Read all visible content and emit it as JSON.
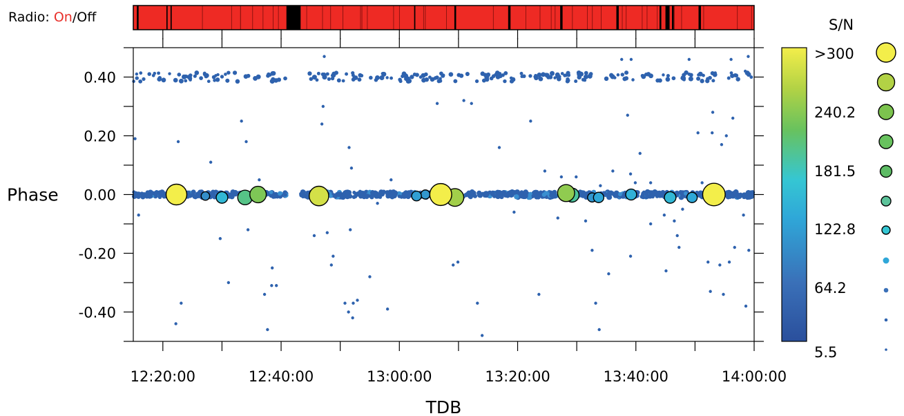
{
  "radio": {
    "label": "Radio:",
    "on": "On",
    "sep": "/",
    "off": "Off"
  },
  "colors": {
    "on": "#ee2a24",
    "off": "#000000",
    "colorbar_stops": [
      "#2a4f9c",
      "#3a70b8",
      "#2fa7d8",
      "#35c6d3",
      "#68c25e",
      "#b2d245",
      "#f3ee4a"
    ]
  },
  "chart_data": {
    "type": "scatter",
    "xlabel": "TDB",
    "ylabel": "Phase",
    "x_start": "12:15:00",
    "x_end": "14:00:00",
    "xlim_minutes": [
      0,
      105
    ],
    "ylim": [
      -0.5,
      0.5
    ],
    "x_ticks": [
      "12:20:00",
      "12:40:00",
      "13:00:00",
      "13:20:00",
      "13:40:00",
      "14:00:00"
    ],
    "y_ticks": [
      "0.40",
      "0.20",
      "0.00",
      "-0.20",
      "-0.40"
    ],
    "grid": false,
    "colorbar": {
      "title": "S/N",
      "tick_labels": [
        ">300",
        "240.2",
        "181.5",
        "122.8",
        "64.2",
        "5.5"
      ],
      "range": [
        5.5,
        300
      ]
    },
    "radio_off_intervals_minutes": [
      [
        25.9,
        28.3
      ],
      [
        0.6,
        0.9
      ],
      [
        5.6,
        5.8
      ],
      [
        6.3,
        6.5
      ],
      [
        47.5,
        47.7
      ],
      [
        54.3,
        54.6
      ],
      [
        63.4,
        63.8
      ],
      [
        72.2,
        72.6
      ],
      [
        81.7,
        82.1
      ],
      [
        89.0,
        89.3
      ],
      [
        90.0,
        90.7
      ],
      [
        91.1,
        91.4
      ],
      [
        95.6,
        96.0
      ]
    ],
    "large_points": [
      {
        "t": 7.3,
        "phase": 0.0,
        "sn": 300
      },
      {
        "t": 12.2,
        "phase": -0.005,
        "sn": 100
      },
      {
        "t": 15.0,
        "phase": -0.01,
        "sn": 150
      },
      {
        "t": 18.9,
        "phase": -0.01,
        "sn": 200
      },
      {
        "t": 21.1,
        "phase": 0.0,
        "sn": 230
      },
      {
        "t": 31.4,
        "phase": -0.005,
        "sn": 280
      },
      {
        "t": 52.0,
        "phase": 0.0,
        "sn": 320
      },
      {
        "t": 54.4,
        "phase": -0.01,
        "sn": 250
      },
      {
        "t": 47.9,
        "phase": -0.005,
        "sn": 120
      },
      {
        "t": 49.4,
        "phase": 0.0,
        "sn": 110
      },
      {
        "t": 73.2,
        "phase": 0.005,
        "sn": 240
      },
      {
        "t": 74.2,
        "phase": -0.002,
        "sn": 190
      },
      {
        "t": 77.6,
        "phase": -0.01,
        "sn": 110
      },
      {
        "t": 78.7,
        "phase": -0.01,
        "sn": 130
      },
      {
        "t": 84.2,
        "phase": 0.0,
        "sn": 140
      },
      {
        "t": 90.8,
        "phase": -0.01,
        "sn": 150
      },
      {
        "t": 94.5,
        "phase": -0.01,
        "sn": 130
      },
      {
        "t": 98.2,
        "phase": 0.0,
        "sn": 330
      }
    ],
    "scatter_points": [
      {
        "t": 7.6,
        "phase": 0.18
      },
      {
        "t": 8.1,
        "phase": -0.37
      },
      {
        "t": 7.2,
        "phase": -0.44
      },
      {
        "t": 0.3,
        "phase": 0.19
      },
      {
        "t": 0.9,
        "phase": -0.07
      },
      {
        "t": 13.1,
        "phase": 0.11
      },
      {
        "t": 14.7,
        "phase": -0.15
      },
      {
        "t": 16.1,
        "phase": -0.3
      },
      {
        "t": 18.3,
        "phase": 0.25
      },
      {
        "t": 19.1,
        "phase": 0.18
      },
      {
        "t": 19.4,
        "phase": -0.12
      },
      {
        "t": 22.2,
        "phase": -0.34
      },
      {
        "t": 22.7,
        "phase": -0.46
      },
      {
        "t": 23.5,
        "phase": -0.25
      },
      {
        "t": 23.4,
        "phase": -0.31
      },
      {
        "t": 24.2,
        "phase": -0.31
      },
      {
        "t": 21.3,
        "phase": 0.05
      },
      {
        "t": 30.6,
        "phase": -0.14
      },
      {
        "t": 32.3,
        "phase": 0.47
      },
      {
        "t": 32.1,
        "phase": 0.3
      },
      {
        "t": 31.9,
        "phase": 0.24
      },
      {
        "t": 32.8,
        "phase": -0.13
      },
      {
        "t": 33.5,
        "phase": -0.24
      },
      {
        "t": 33.8,
        "phase": -0.21
      },
      {
        "t": 35.8,
        "phase": -0.37
      },
      {
        "t": 36.4,
        "phase": -0.4
      },
      {
        "t": 37.1,
        "phase": -0.42
      },
      {
        "t": 37.2,
        "phase": -0.37
      },
      {
        "t": 37.9,
        "phase": -0.36
      },
      {
        "t": 36.5,
        "phase": 0.16
      },
      {
        "t": 36.9,
        "phase": 0.09
      },
      {
        "t": 36.7,
        "phase": -0.12
      },
      {
        "t": 40.0,
        "phase": -0.28
      },
      {
        "t": 41.3,
        "phase": -0.03
      },
      {
        "t": 43.0,
        "phase": -0.39
      },
      {
        "t": 43.6,
        "phase": 0.05
      },
      {
        "t": 51.4,
        "phase": 0.31
      },
      {
        "t": 54.1,
        "phase": -0.24
      },
      {
        "t": 54.9,
        "phase": -0.23
      },
      {
        "t": 55.9,
        "phase": 0.32
      },
      {
        "t": 57.2,
        "phase": 0.31
      },
      {
        "t": 58.2,
        "phase": -0.37
      },
      {
        "t": 59.0,
        "phase": -0.48
      },
      {
        "t": 61.9,
        "phase": 0.16
      },
      {
        "t": 64.4,
        "phase": -0.06
      },
      {
        "t": 67.2,
        "phase": 0.25
      },
      {
        "t": 68.6,
        "phase": -0.34
      },
      {
        "t": 69.6,
        "phase": 0.08
      },
      {
        "t": 71.8,
        "phase": -0.08
      },
      {
        "t": 72.4,
        "phase": 0.06
      },
      {
        "t": 74.9,
        "phase": 0.06
      },
      {
        "t": 76.5,
        "phase": -0.09
      },
      {
        "t": 77.6,
        "phase": -0.19
      },
      {
        "t": 78.2,
        "phase": -0.37
      },
      {
        "t": 79.0,
        "phase": 0.03
      },
      {
        "t": 78.8,
        "phase": -0.46
      },
      {
        "t": 80.4,
        "phase": -0.27
      },
      {
        "t": 81.1,
        "phase": 0.08
      },
      {
        "t": 83.6,
        "phase": 0.27
      },
      {
        "t": 84.1,
        "phase": -0.21
      },
      {
        "t": 84.1,
        "phase": 0.07
      },
      {
        "t": 84.9,
        "phase": 0.04
      },
      {
        "t": 85.7,
        "phase": 0.14
      },
      {
        "t": 87.5,
        "phase": -0.1
      },
      {
        "t": 87.5,
        "phase": 0.04
      },
      {
        "t": 89.8,
        "phase": -0.07
      },
      {
        "t": 90.1,
        "phase": -0.26
      },
      {
        "t": 91.5,
        "phase": -0.09
      },
      {
        "t": 92.0,
        "phase": -0.14
      },
      {
        "t": 92.3,
        "phase": -0.18
      },
      {
        "t": 92.9,
        "phase": -0.05
      },
      {
        "t": 95.5,
        "phase": 0.21
      },
      {
        "t": 96.2,
        "phase": 0.04
      },
      {
        "t": 97.2,
        "phase": -0.23
      },
      {
        "t": 97.6,
        "phase": -0.33
      },
      {
        "t": 98.0,
        "phase": 0.28
      },
      {
        "t": 99.2,
        "phase": -0.24
      },
      {
        "t": 99.5,
        "phase": 0.17
      },
      {
        "t": 99.8,
        "phase": -0.34
      },
      {
        "t": 100.3,
        "phase": 0.2
      },
      {
        "t": 100.8,
        "phase": -0.23
      },
      {
        "t": 101.4,
        "phase": 0.26
      },
      {
        "t": 101.7,
        "phase": -0.18
      },
      {
        "t": 103.2,
        "phase": -0.07
      },
      {
        "t": 103.5,
        "phase": 0.42
      },
      {
        "t": 103.6,
        "phase": -0.38
      },
      {
        "t": 104.0,
        "phase": 0.47
      },
      {
        "t": 104.1,
        "phase": -0.19
      },
      {
        "t": 94.0,
        "phase": 0.46
      },
      {
        "t": 101.1,
        "phase": 0.46
      },
      {
        "t": 82.6,
        "phase": 0.46
      },
      {
        "t": 84.2,
        "phase": 0.46
      },
      {
        "t": 97.9,
        "phase": 0.21
      }
    ]
  }
}
